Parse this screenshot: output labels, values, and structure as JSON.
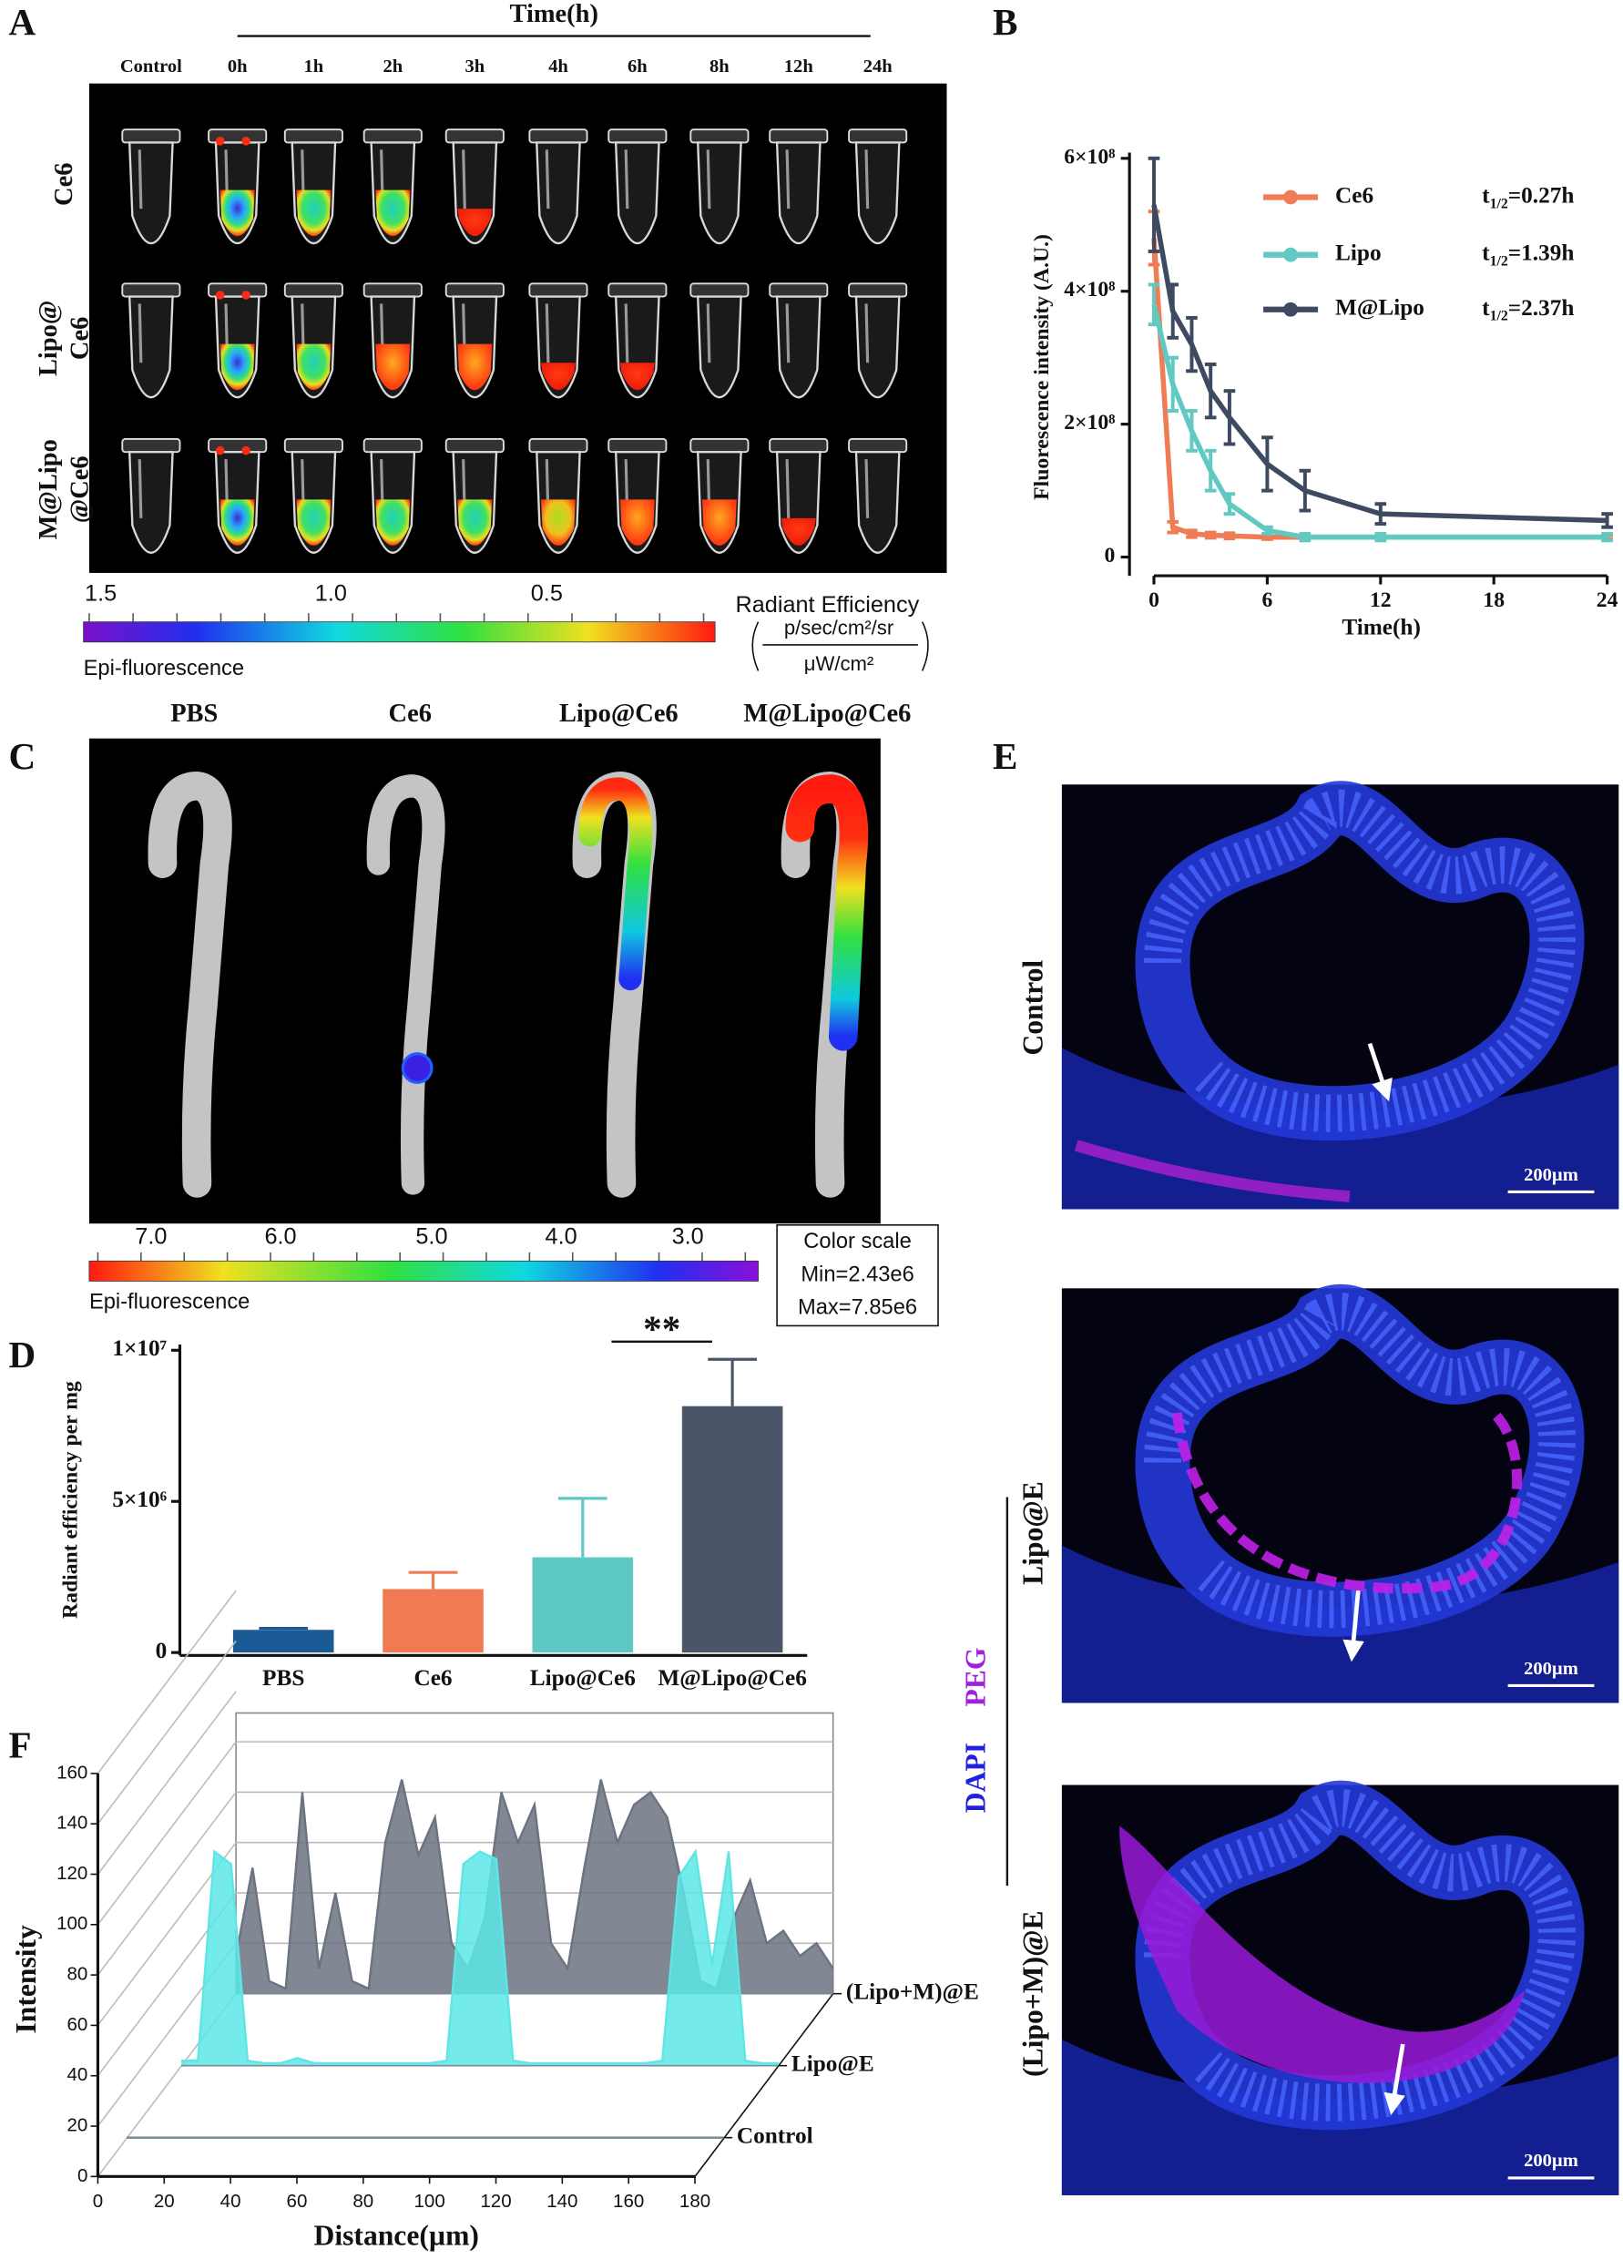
{
  "panel_labels": [
    "A",
    "B",
    "C",
    "D",
    "E",
    "F"
  ],
  "panel_a": {
    "axis_title": "Time(h)",
    "columns": [
      "Control",
      "0h",
      "1h",
      "2h",
      "3h",
      "4h",
      "6h",
      "8h",
      "12h",
      "24h"
    ],
    "rows": [
      [
        "Ce6"
      ],
      [
        "Lipo@",
        "Ce6"
      ],
      [
        "M@Lipo",
        "@Ce6"
      ]
    ],
    "scale_ticks": [
      "1.5",
      "1.0",
      "0.5"
    ],
    "scale_title": "Radiant Efficiency",
    "scale_unit_numerator": "p/sec/cm²/sr",
    "scale_unit_denominator": "μW/cm²",
    "scale_label": "Epi-fluorescence"
  },
  "panel_c": {
    "groups": [
      "PBS",
      "Ce6",
      "Lipo@Ce6",
      "M@Lipo@Ce6"
    ],
    "scale_ticks": [
      "7.0",
      "6.0",
      "5.0",
      "4.0",
      "3.0"
    ],
    "scale_box": [
      "Color scale",
      "Min=2.43e6",
      "Max=7.85e6"
    ],
    "scale_label": "Epi-fluorescence"
  },
  "panel_e": {
    "rows": [
      "Control",
      "Lipo@E",
      "(Lipo+M)@E"
    ],
    "scale_bars": [
      "200µm",
      "200µm",
      "200µm"
    ],
    "stain_labels": [
      "DAPI",
      "PEG"
    ]
  },
  "chart_data": [
    {
      "type": "line",
      "xlabel": "Time(h)",
      "ylabel": "Fluorescence intensity (A.U.)",
      "x": [
        0,
        1,
        2,
        3,
        4,
        6,
        8,
        12,
        24
      ],
      "xlim": [
        0,
        24
      ],
      "xticks": [
        0,
        6,
        12,
        18,
        24
      ],
      "ylim": [
        0,
        600000000
      ],
      "yticks": [
        0,
        {
          "value": 200000000,
          "label": "2×10⁸"
        },
        {
          "value": 400000000,
          "label": "4×10⁸"
        },
        {
          "value": 600000000,
          "label": "6×10⁸"
        }
      ],
      "series": [
        {
          "name": "Ce6",
          "color": "#ef7c55",
          "half_life": {
            "symbol": "t",
            "subscript": "1/2",
            "text": "=0.27h"
          },
          "values": [
            480000000,
            45000000,
            35000000,
            33000000,
            32000000,
            30000000,
            30000000,
            30000000,
            30000000
          ],
          "errors": [
            40000000,
            8000000,
            5000000,
            4000000,
            4000000,
            3000000,
            3000000,
            3000000,
            3000000
          ]
        },
        {
          "name": "Lipo",
          "color": "#61c9c2",
          "half_life": {
            "symbol": "t",
            "subscript": "1/2",
            "text": "=1.39h"
          },
          "values": [
            380000000,
            260000000,
            190000000,
            130000000,
            80000000,
            40000000,
            30000000,
            30000000,
            30000000
          ],
          "errors": [
            30000000,
            40000000,
            30000000,
            30000000,
            15000000,
            5000000,
            5000000,
            5000000,
            5000000
          ]
        },
        {
          "name": "M@Lipo",
          "color": "#3e4a60",
          "half_life": {
            "symbol": "t",
            "subscript": "1/2",
            "text": "=2.37h"
          },
          "values": [
            530000000,
            370000000,
            320000000,
            250000000,
            210000000,
            140000000,
            100000000,
            65000000,
            55000000
          ],
          "errors": [
            70000000,
            40000000,
            40000000,
            40000000,
            40000000,
            40000000,
            30000000,
            15000000,
            10000000
          ]
        }
      ]
    },
    {
      "type": "bar",
      "ylabel": "Radiant efficiency per mg",
      "categories": [
        "PBS",
        "Ce6",
        "Lipo@Ce6",
        "M@Lipo@Ce6"
      ],
      "values": [
        750000,
        2100000,
        3150000,
        8150000
      ],
      "errors": [
        50000,
        550000,
        1950000,
        1550000
      ],
      "colors": [
        "#1c5a96",
        "#f07b52",
        "#5ec8c4",
        "#4b5568"
      ],
      "ylim": [
        0,
        10000000
      ],
      "yticks": [
        0,
        {
          "value": 5000000,
          "label": "5×10⁶"
        },
        {
          "value": 10000000,
          "label": "1×10⁷"
        }
      ],
      "annotation": "**"
    },
    {
      "type": "line3d",
      "xlabel": "Distance(µm)",
      "ylabel": "Intensity",
      "xlim": [
        0,
        180
      ],
      "xticks": [
        0,
        20,
        40,
        60,
        80,
        100,
        120,
        140,
        160,
        180
      ],
      "ylim": [
        0,
        160
      ],
      "yticks": [
        0,
        20,
        40,
        60,
        80,
        100,
        120,
        140,
        160
      ],
      "x": [
        0,
        5,
        10,
        15,
        20,
        25,
        30,
        35,
        40,
        45,
        50,
        55,
        60,
        65,
        70,
        75,
        80,
        85,
        90,
        95,
        100,
        105,
        110,
        115,
        120,
        125,
        130,
        135,
        140,
        145,
        150,
        155,
        160,
        165,
        170,
        175,
        180
      ],
      "series": [
        {
          "name": "Control",
          "color": "#5a7f8f",
          "values": [
            0,
            0,
            0,
            0,
            0,
            0,
            0,
            0,
            0,
            0,
            0,
            0,
            0,
            0,
            0,
            0,
            0,
            0,
            0,
            0,
            0,
            0,
            0,
            0,
            0,
            0,
            0,
            0,
            0,
            0,
            0,
            0,
            0,
            0,
            0,
            0,
            0
          ]
        },
        {
          "name": "Lipo@E",
          "color": "#5ce6e6",
          "values": [
            2,
            2,
            85,
            80,
            2,
            1,
            1,
            3,
            1,
            1,
            1,
            1,
            1,
            1,
            1,
            1,
            2,
            80,
            85,
            82,
            2,
            1,
            1,
            1,
            1,
            1,
            1,
            1,
            1,
            2,
            75,
            85,
            40,
            85,
            2,
            1,
            1
          ]
        },
        {
          "name": "(Lipo+M)@E",
          "color": "#6b7280",
          "values": [
            15,
            50,
            5,
            2,
            80,
            10,
            40,
            5,
            2,
            60,
            85,
            55,
            70,
            20,
            10,
            30,
            80,
            60,
            75,
            20,
            10,
            50,
            85,
            60,
            75,
            80,
            70,
            40,
            5,
            2,
            30,
            45,
            20,
            25,
            15,
            20,
            10
          ]
        }
      ]
    }
  ]
}
